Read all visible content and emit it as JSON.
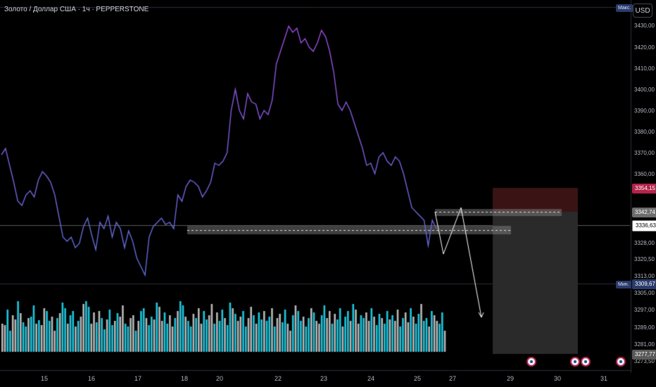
{
  "header": {
    "symbol_title": "Золото / Доллар США · 1ч · PEPPERSTONE",
    "currency_button": "USD"
  },
  "price_axis": {
    "max_label": "Макс.",
    "min_label": "Мин.",
    "ticks": [
      "3430,00",
      "3420,00",
      "3410,00",
      "3400,00",
      "3390,00",
      "3380,00",
      "3370,00",
      "3360,00",
      "3328,00",
      "3320,50",
      "3313,00",
      "3305,00",
      "3297,00",
      "3289,00",
      "3281,00",
      "3273,50"
    ],
    "tag_stop": "3354,15",
    "tag_entry": "3342,74",
    "tag_current": "3336,63",
    "tag_min": "3309,67",
    "tag_volume": "3277,77"
  },
  "time_axis": {
    "labels": [
      "15",
      "16",
      "17",
      "18",
      "20",
      "22",
      "23",
      "24",
      "25",
      "27",
      "29",
      "30",
      "31"
    ]
  },
  "colors": {
    "background": "#000000",
    "line_low": "#5b6fd6",
    "line_high": "#a04ae0",
    "volume_up": "#1cc8e0",
    "volume_down": "#b8b8b8",
    "stop_zone": "#3a1414",
    "target_zone": "#2a2a2a",
    "stop_tag": "#b3244a",
    "entry_tag": "#6d6d6d",
    "current_tag": "#ffffff",
    "min_tag": "#2a3b6b"
  },
  "events": {
    "icon": "economic-event-icon",
    "count": 4
  },
  "chart_data": {
    "type": "line",
    "x_label_days": [
      "15",
      "16",
      "17",
      "18",
      "20",
      "22",
      "23",
      "24",
      "25",
      "27"
    ],
    "price_series": [
      3369,
      3372,
      3364,
      3356,
      3347,
      3345,
      3350,
      3352,
      3349,
      3357,
      3361,
      3359,
      3356,
      3350,
      3340,
      3330,
      3328,
      3330,
      3325,
      3327,
      3335,
      3339,
      3331,
      3324,
      3337,
      3334,
      3340,
      3330,
      3337,
      3334,
      3325,
      3333,
      3328,
      3320,
      3316,
      3312,
      3330,
      3335,
      3337,
      3339,
      3336,
      3337,
      3334,
      3350,
      3347,
      3354,
      3357,
      3356,
      3354,
      3349,
      3352,
      3356,
      3365,
      3364,
      3366,
      3370,
      3390,
      3400,
      3390,
      3386,
      3398,
      3394,
      3393,
      3386,
      3390,
      3388,
      3395,
      3412,
      3418,
      3424,
      3430,
      3427,
      3429,
      3422,
      3424,
      3420,
      3418,
      3422,
      3428,
      3425,
      3418,
      3408,
      3393,
      3390,
      3394,
      3390,
      3384,
      3378,
      3372,
      3364,
      3365,
      3360,
      3368,
      3370,
      3366,
      3364,
      3368,
      3366,
      3360,
      3352,
      3344,
      3342,
      3340,
      3338,
      3326,
      3338,
      3334
    ],
    "projection": [
      3342,
      3322,
      3344,
      3292
    ],
    "volume_values": [
      40,
      38,
      60,
      30,
      52,
      46,
      72,
      55,
      42,
      36,
      48,
      50,
      66,
      40,
      45,
      38,
      62,
      58,
      44,
      50,
      30,
      48,
      55,
      70,
      62,
      40,
      52,
      58,
      36,
      44,
      50,
      68,
      72,
      64,
      40,
      56,
      42,
      58,
      48,
      32,
      46,
      60,
      38,
      44,
      55,
      50,
      66,
      40,
      36,
      48,
      52,
      30,
      44,
      58,
      62,
      48,
      38,
      50,
      46,
      70,
      64,
      44,
      56,
      40,
      52,
      36,
      48,
      58,
      72,
      66,
      50,
      44,
      36,
      54,
      48,
      62,
      40,
      58,
      46,
      52,
      68,
      40,
      56,
      44,
      60,
      48,
      38,
      70,
      62,
      54,
      44,
      50,
      58,
      36,
      48,
      64,
      52,
      40,
      56,
      46,
      58,
      44,
      50,
      62,
      36,
      48,
      54,
      42,
      60,
      40,
      30,
      52,
      66,
      58,
      44,
      50,
      36,
      48,
      62,
      56,
      44,
      40,
      52,
      66,
      48,
      58,
      40,
      54,
      46,
      62,
      36,
      50,
      58,
      44,
      68,
      60,
      40,
      52,
      48,
      56,
      44,
      62,
      50,
      38,
      54,
      48,
      40,
      58,
      46,
      52,
      44,
      60,
      36,
      48,
      56,
      42,
      62,
      50,
      40,
      54,
      68,
      44,
      48,
      36,
      58,
      52,
      44,
      40,
      56,
      30
    ]
  }
}
